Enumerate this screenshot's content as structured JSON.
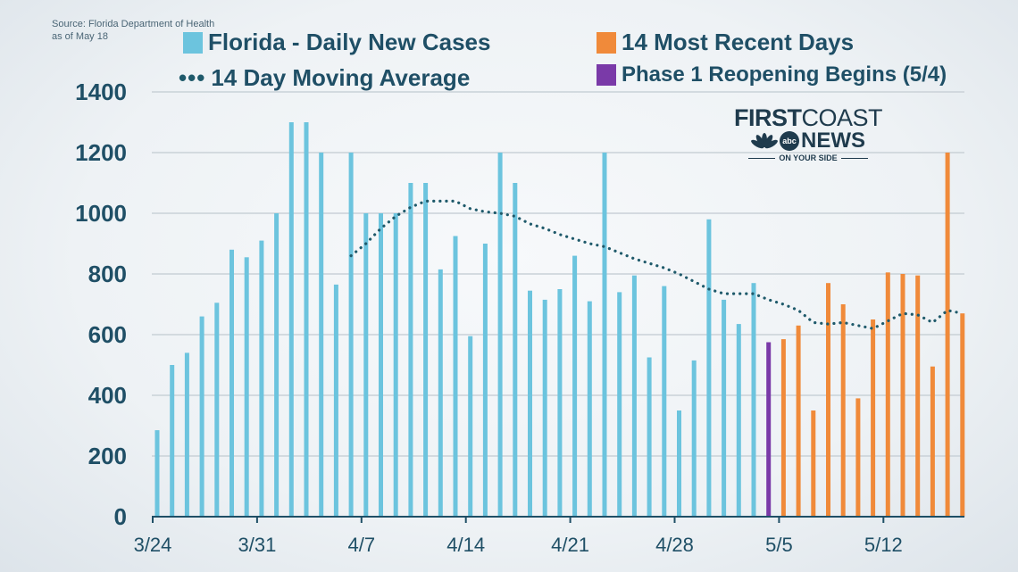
{
  "source": {
    "line1": "Source: Florida Department of Health",
    "line2": "as of May 18"
  },
  "legend": {
    "daily": "Florida - Daily New Cases",
    "recent": "14 Most Recent Days",
    "average": "14 Day Moving Average",
    "phase": "Phase 1 Reopening Begins (5/4)"
  },
  "logo": {
    "first": "FIRST",
    "coast": "COAST",
    "news": "NEWS",
    "abc": "abc",
    "tagline": "ON YOUR SIDE"
  },
  "colors": {
    "daily": "#6cc4de",
    "recent": "#f08a3a",
    "phase": "#7a3aa8",
    "average": "#1f5a6b",
    "text": "#1f4f66",
    "grid": "#c9d1d7"
  },
  "chart_data": {
    "type": "bar",
    "ylim": [
      0,
      1400
    ],
    "yticks": [
      "0",
      "200",
      "400",
      "600",
      "800",
      "1000",
      "1200",
      "1400"
    ],
    "xticks": [
      {
        "label": "3/24",
        "index": 0
      },
      {
        "label": "3/31",
        "index": 7
      },
      {
        "label": "4/7",
        "index": 14
      },
      {
        "label": "4/14",
        "index": 21
      },
      {
        "label": "4/21",
        "index": 28
      },
      {
        "label": "4/28",
        "index": 35
      },
      {
        "label": "5/5",
        "index": 42
      },
      {
        "label": "5/12",
        "index": 49
      }
    ],
    "categories": [
      "3/24",
      "3/25",
      "3/26",
      "3/27",
      "3/28",
      "3/29",
      "3/30",
      "3/31",
      "4/1",
      "4/2",
      "4/3",
      "4/4",
      "4/5",
      "4/6",
      "4/7",
      "4/8",
      "4/9",
      "4/10",
      "4/11",
      "4/12",
      "4/13",
      "4/14",
      "4/15",
      "4/16",
      "4/17",
      "4/18",
      "4/19",
      "4/20",
      "4/21",
      "4/22",
      "4/23",
      "4/24",
      "4/25",
      "4/26",
      "4/27",
      "4/28",
      "4/29",
      "4/30",
      "5/1",
      "5/2",
      "5/3",
      "5/4",
      "5/5",
      "5/6",
      "5/7",
      "5/8",
      "5/9",
      "5/10",
      "5/11",
      "5/12",
      "5/13",
      "5/14",
      "5/15",
      "5/16",
      "5/17"
    ],
    "series": [
      {
        "name": "Florida - Daily New Cases",
        "values": [
          285,
          500,
          540,
          660,
          705,
          880,
          855,
          910,
          1000,
          1300,
          1300,
          1200,
          765,
          1200,
          1000,
          1000,
          1000,
          1100,
          1100,
          815,
          925,
          595,
          900,
          1200,
          1100,
          745,
          715,
          750,
          860,
          710,
          1200,
          740,
          795,
          525,
          760,
          350,
          515,
          980,
          715,
          635,
          770,
          null,
          null,
          null,
          null,
          null,
          null,
          null,
          null,
          null,
          null,
          null,
          null,
          null,
          null
        ]
      },
      {
        "name": "Phase 1 Reopening Begins (5/4)",
        "values": [
          null,
          null,
          null,
          null,
          null,
          null,
          null,
          null,
          null,
          null,
          null,
          null,
          null,
          null,
          null,
          null,
          null,
          null,
          null,
          null,
          null,
          null,
          null,
          null,
          null,
          null,
          null,
          null,
          null,
          null,
          null,
          null,
          null,
          null,
          null,
          null,
          null,
          null,
          null,
          null,
          null,
          575,
          null,
          null,
          null,
          null,
          null,
          null,
          null,
          null,
          null,
          null,
          null,
          null,
          null
        ]
      },
      {
        "name": "14 Most Recent Days",
        "values": [
          null,
          null,
          null,
          null,
          null,
          null,
          null,
          null,
          null,
          null,
          null,
          null,
          null,
          null,
          null,
          null,
          null,
          null,
          null,
          null,
          null,
          null,
          null,
          null,
          null,
          null,
          null,
          null,
          null,
          null,
          null,
          null,
          null,
          null,
          null,
          null,
          null,
          null,
          null,
          null,
          null,
          null,
          585,
          630,
          350,
          770,
          700,
          390,
          650,
          805,
          800,
          795,
          495,
          1200,
          670
        ]
      },
      {
        "name": "14 Day Moving Average",
        "values": [
          null,
          null,
          null,
          null,
          null,
          null,
          null,
          null,
          null,
          null,
          null,
          null,
          null,
          860,
          900,
          950,
          990,
          1020,
          1040,
          1040,
          1040,
          1015,
          1005,
          1000,
          990,
          965,
          950,
          930,
          915,
          900,
          890,
          870,
          850,
          835,
          820,
          800,
          775,
          750,
          735,
          735,
          735,
          715,
          700,
          680,
          640,
          635,
          640,
          630,
          620,
          645,
          670,
          665,
          640,
          680,
          670
        ]
      }
    ]
  }
}
